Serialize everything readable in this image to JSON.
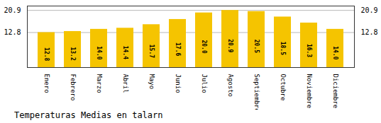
{
  "chart_data": {
    "type": "bar",
    "title": "Temperaturas Medias en talarn",
    "categories": [
      "Enero",
      "Febrero",
      "Marzo",
      "Abril",
      "Mayo",
      "Junio",
      "Julio",
      "Agosto",
      "Septiembre",
      "Octubre",
      "Noviembre",
      "Diciembre"
    ],
    "values": [
      12.8,
      13.2,
      14.0,
      14.4,
      15.7,
      17.6,
      20.0,
      20.9,
      20.5,
      18.5,
      16.3,
      14.0
    ],
    "value_labels": [
      "12.8",
      "13.2",
      "14.0",
      "14.4",
      "15.7",
      "17.6",
      "20.0",
      "20.9",
      "20.5",
      "18.5",
      "16.3",
      "14.0"
    ],
    "color": "#F5C400",
    "ylim": [
      0,
      22.5
    ],
    "yticks": [
      20.9,
      12.8
    ],
    "grid": true,
    "data_labels": true
  }
}
